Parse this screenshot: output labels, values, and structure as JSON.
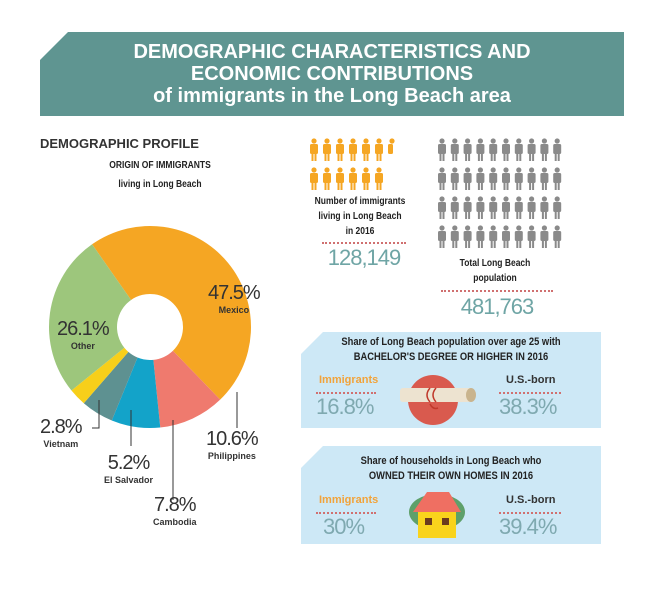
{
  "title": {
    "line1": "DEMOGRAPHIC CHARACTERISTICS AND",
    "line2": "ECONOMIC CONTRIBUTIONS",
    "line3": "of immigrants in the Long Beach area"
  },
  "section_title": "DEMOGRAPHIC PROFILE",
  "chart_data": {
    "type": "pie",
    "title": "ORIGIN OF IMMIGRANTS",
    "subtitle": "living in Long Beach",
    "donut": true,
    "slices": [
      {
        "label": "Mexico",
        "value": 47.5,
        "display": "47.5%",
        "color": "#f5a623"
      },
      {
        "label": "Philippines",
        "value": 10.6,
        "display": "10.6%",
        "color": "#ef7a6e"
      },
      {
        "label": "Cambodia",
        "value": 7.8,
        "display": "7.8%",
        "color": "#13a3c9"
      },
      {
        "label": "El Salvador",
        "value": 5.2,
        "display": "5.2%",
        "color": "#5e9191"
      },
      {
        "label": "Vietnam",
        "value": 2.8,
        "display": "2.8%",
        "color": "#f7cf1a"
      },
      {
        "label": "Other",
        "value": 26.1,
        "display": "26.1%",
        "color": "#9dc67c"
      }
    ]
  },
  "immigrants": {
    "label_line1": "Number of immigrants",
    "label_line2": "living in Long Beach",
    "label_line3": "in 2016",
    "value": "128,149",
    "color": "#f5a623"
  },
  "population": {
    "label_line1": "Total Long Beach",
    "label_line2": "population",
    "value": "481,763",
    "color": "#8a8a8a"
  },
  "education": {
    "title_line1": "Share of Long Beach population over age 25 with",
    "title_line2": "BACHELOR'S DEGREE OR HIGHER IN 2016",
    "immigrants_label": "Immigrants",
    "immigrants_value": "16.8%",
    "usborn_label": "U.S.-born",
    "usborn_value": "38.3%"
  },
  "homes": {
    "title_line1": "Share of households in Long Beach who",
    "title_line2": "OWNED THEIR OWN HOMES IN 2016",
    "immigrants_label": "Immigrants",
    "immigrants_value": "30%",
    "usborn_label": "U.S.-born",
    "usborn_value": "39.4%"
  }
}
